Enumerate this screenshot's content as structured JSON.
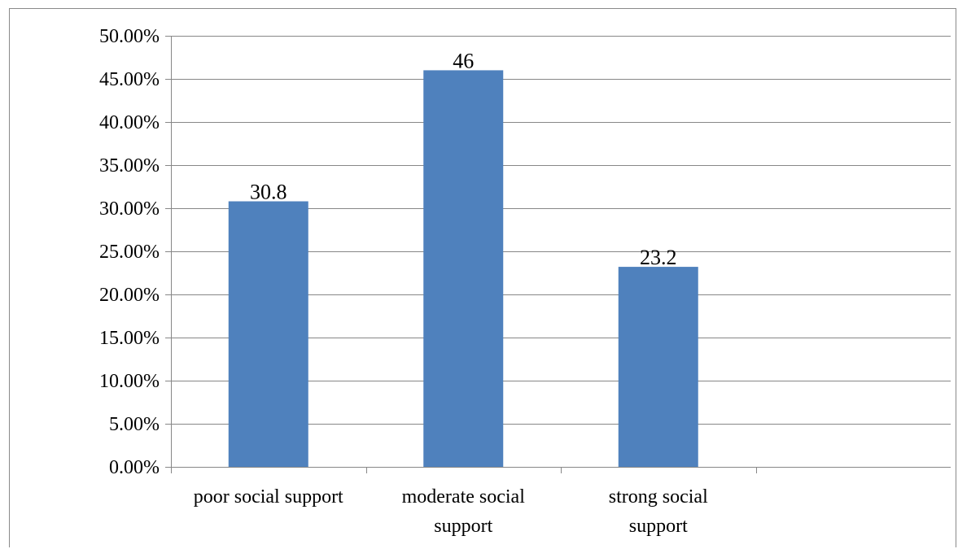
{
  "chart_data": {
    "type": "bar",
    "categories": [
      "poor social support",
      "moderate social support",
      "strong social support"
    ],
    "category_label_lines": [
      [
        "poor social support"
      ],
      [
        "moderate social",
        "support"
      ],
      [
        "strong social",
        "support"
      ]
    ],
    "values": [
      30.8,
      46,
      23.2
    ],
    "data_labels": [
      "30.8",
      "46",
      "23.2"
    ],
    "ylim": [
      0,
      50
    ],
    "yticks": [
      0,
      5,
      10,
      15,
      20,
      25,
      30,
      35,
      40,
      45,
      50
    ],
    "ytick_labels": [
      "0.00%",
      "5.00%",
      "10.00%",
      "15.00%",
      "20.00%",
      "25.00%",
      "30.00%",
      "35.00%",
      "40.00%",
      "45.00%",
      "50.00%"
    ],
    "title": "",
    "xlabel": "",
    "ylabel": "",
    "grid": true,
    "legend": "none",
    "bar_color": "#4f81bd",
    "grid_color": "#878787"
  }
}
